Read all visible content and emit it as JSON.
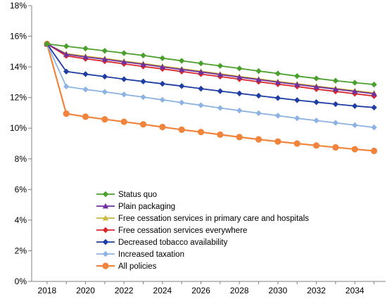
{
  "chart_data": {
    "type": "line",
    "title": "",
    "xlabel": "",
    "ylabel": "",
    "x": [
      2018,
      2019,
      2020,
      2021,
      2022,
      2023,
      2024,
      2025,
      2026,
      2027,
      2028,
      2029,
      2030,
      2031,
      2032,
      2033,
      2034,
      2035
    ],
    "xlim": [
      2017.2,
      2035.6
    ],
    "ylim": [
      0,
      18
    ],
    "x_ticks": [
      "2018",
      "2020",
      "2022",
      "2024",
      "2026",
      "2028",
      "2030",
      "2032",
      "2034"
    ],
    "x_tick_values": [
      2018,
      2020,
      2022,
      2024,
      2026,
      2028,
      2030,
      2032,
      2034
    ],
    "y_ticks": [
      "0%",
      "2%",
      "4%",
      "6%",
      "8%",
      "10%",
      "12%",
      "14%",
      "16%",
      "18%"
    ],
    "y_tick_values": [
      0,
      2,
      4,
      6,
      8,
      10,
      12,
      14,
      16,
      18
    ],
    "grid": false,
    "legend_position": "bottom-left",
    "series": [
      {
        "name": "Status quo",
        "color": "#4aa02c",
        "marker": "diamond",
        "values": [
          15.5,
          15.35,
          15.2,
          15.05,
          14.9,
          14.75,
          14.57,
          14.4,
          14.23,
          14.07,
          13.9,
          13.73,
          13.57,
          13.4,
          13.25,
          13.1,
          12.97,
          12.85
        ]
      },
      {
        "name": "Plain packaging",
        "color": "#7030a0",
        "marker": "triangle",
        "values": [
          15.5,
          14.82,
          14.65,
          14.5,
          14.33,
          14.17,
          14.0,
          13.83,
          13.67,
          13.5,
          13.33,
          13.17,
          13.0,
          12.85,
          12.7,
          12.55,
          12.4,
          12.25
        ]
      },
      {
        "name": "Free cessation services in primary care and hospitals",
        "color": "#c9b83c",
        "marker": "triangle",
        "values": [
          15.5,
          14.87,
          14.7,
          14.55,
          14.38,
          14.22,
          14.05,
          13.88,
          13.72,
          13.55,
          13.38,
          13.22,
          13.05,
          12.9,
          12.75,
          12.6,
          12.45,
          12.3
        ]
      },
      {
        "name": "Free cessation services everywhere",
        "color": "#d9262b",
        "marker": "diamond",
        "values": [
          15.5,
          14.72,
          14.53,
          14.37,
          14.2,
          14.03,
          13.87,
          13.7,
          13.53,
          13.37,
          13.2,
          13.03,
          12.87,
          12.72,
          12.55,
          12.4,
          12.25,
          12.1
        ]
      },
      {
        "name": "Decreased tobacco availability",
        "color": "#1f3ea3",
        "marker": "diamond",
        "values": [
          15.5,
          13.7,
          13.53,
          13.37,
          13.2,
          13.05,
          12.9,
          12.75,
          12.58,
          12.42,
          12.27,
          12.12,
          11.97,
          11.83,
          11.7,
          11.57,
          11.45,
          11.35
        ]
      },
      {
        "name": "Increased taxation",
        "color": "#8db3e2",
        "marker": "diamond",
        "values": [
          15.5,
          12.72,
          12.53,
          12.37,
          12.2,
          12.03,
          11.85,
          11.67,
          11.5,
          11.32,
          11.15,
          10.98,
          10.82,
          10.65,
          10.5,
          10.35,
          10.2,
          10.05
        ]
      },
      {
        "name": "All policies",
        "color": "#f0843c",
        "marker": "circle",
        "values": [
          15.5,
          10.95,
          10.75,
          10.58,
          10.42,
          10.25,
          10.08,
          9.9,
          9.75,
          9.58,
          9.42,
          9.27,
          9.13,
          9.0,
          8.87,
          8.75,
          8.63,
          8.52
        ]
      }
    ]
  }
}
